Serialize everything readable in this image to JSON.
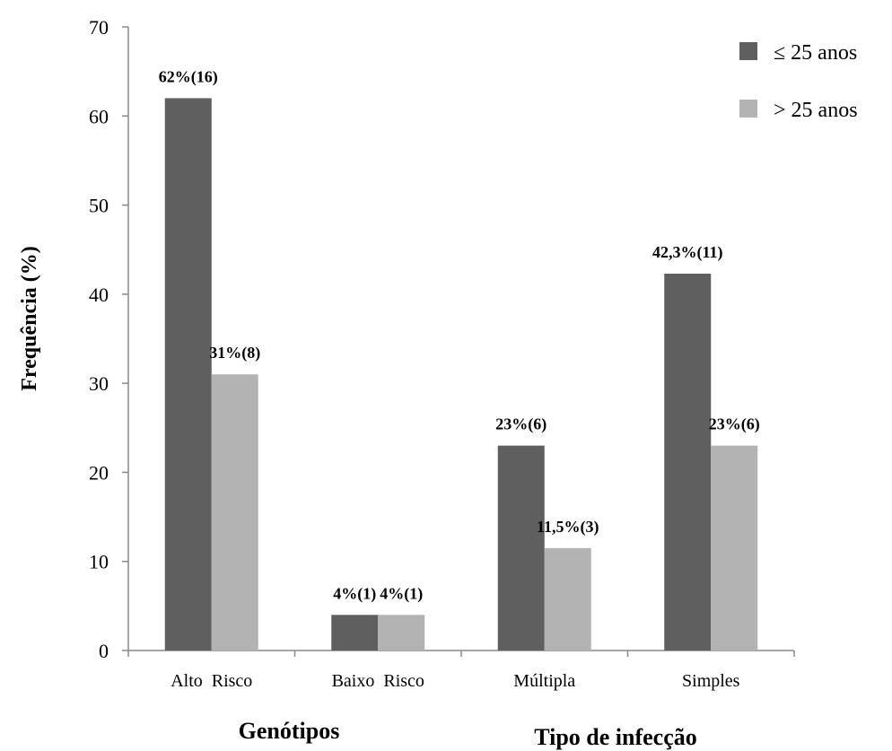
{
  "chart_data": {
    "type": "bar",
    "categories": [
      "Alto  Risco",
      "Baixo  Risco",
      "Múltipla",
      "Simples"
    ],
    "series": [
      {
        "name": "≤ 25 anos",
        "color": "#5f5f5f",
        "values": [
          62,
          4,
          23,
          42.3
        ],
        "labels": [
          "62%(16)",
          "4%(1)",
          "23%(6)",
          "42,3%(11)"
        ]
      },
      {
        "name": "> 25 anos",
        "color": "#b3b3b3",
        "values": [
          31,
          4,
          11.5,
          23
        ],
        "labels": [
          "31%(8)",
          "4%(1)",
          "11,5%(3)",
          "23%(6)"
        ]
      }
    ],
    "ylabel": "Frequência (%)",
    "ylim": [
      0,
      70
    ],
    "yticks": [
      0,
      10,
      20,
      30,
      40,
      50,
      60,
      70
    ],
    "grid": false,
    "legend_position": "top-right",
    "group_labels": [
      "Genótipos",
      "Tipo de infecção"
    ]
  }
}
